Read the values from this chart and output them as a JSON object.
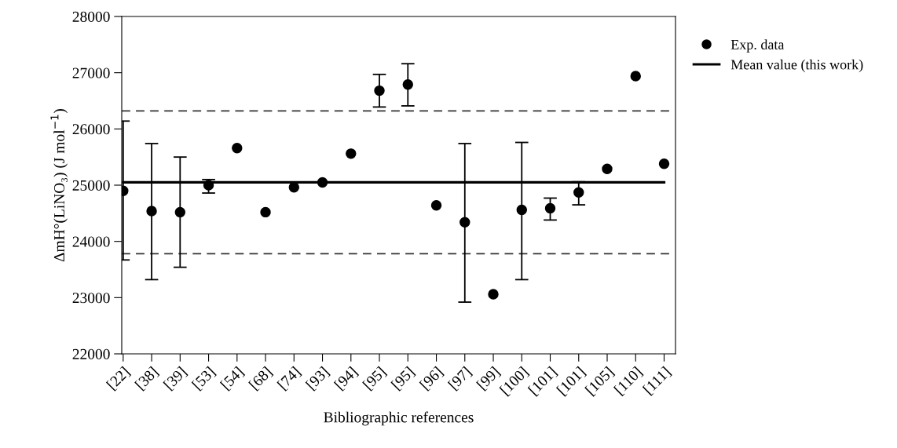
{
  "chart_data": {
    "type": "scatter",
    "xlabel": "Bibliographic references",
    "ylabel": "ΔmH°(LiNO₃) (J mol$^{−1}$)",
    "categories": [
      "[22]",
      "[38]",
      "[39]",
      "[53]",
      "[54]",
      "[68]",
      "[74]",
      "[93]",
      "[94]",
      "[95]",
      "[95]",
      "[96]",
      "[97]",
      "[99]",
      "[100]",
      "[101]",
      "[101]",
      "[105]",
      "[110]",
      "[111]"
    ],
    "series": [
      {
        "name": "Exp. data",
        "color": "#000000",
        "marker": "circle",
        "values": [
          24900,
          24540,
          24520,
          25000,
          25660,
          24520,
          24960,
          25050,
          25560,
          26680,
          26790,
          24640,
          24340,
          23060,
          24560,
          24590,
          24870,
          25290,
          26940,
          25380
        ],
        "errors": [
          [
            23670,
            26140
          ],
          [
            23320,
            25740
          ],
          [
            23540,
            25500
          ],
          [
            24860,
            25100
          ],
          null,
          null,
          null,
          null,
          null,
          [
            26390,
            26970
          ],
          [
            26410,
            27160
          ],
          null,
          [
            22920,
            25740
          ],
          null,
          [
            23320,
            25760
          ],
          [
            24380,
            24770
          ],
          [
            24650,
            25060
          ],
          null,
          null,
          null
        ]
      },
      {
        "name": "Mean value (this work)",
        "type": "line",
        "color": "#000000",
        "marker": "none",
        "line_style": "solid",
        "values": [
          25050,
          25050,
          25050,
          25050,
          25050,
          25050,
          25050,
          25050,
          25050,
          25050,
          25050,
          25050,
          25050,
          25050,
          25050,
          25050,
          25050,
          25050,
          25050,
          25050
        ]
      }
    ],
    "ref_lines": [
      {
        "axis": "y",
        "value": 26320,
        "color": "#333333",
        "line_style": "dashed"
      },
      {
        "axis": "y",
        "value": 23780,
        "color": "#333333",
        "line_style": "dashed"
      }
    ],
    "ylim": [
      22000,
      28000
    ],
    "yticks": [
      22000,
      23000,
      24000,
      25000,
      26000,
      27000,
      28000
    ],
    "grid": false,
    "legend": "top right"
  }
}
